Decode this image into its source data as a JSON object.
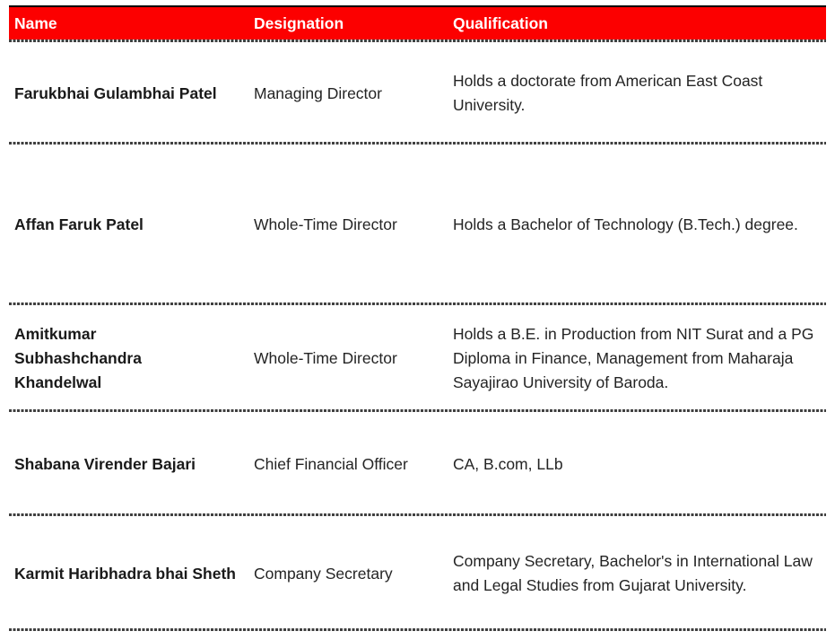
{
  "table": {
    "columns": [
      {
        "label": "Name"
      },
      {
        "label": "Designation"
      },
      {
        "label": "Qualification"
      }
    ],
    "rows": [
      {
        "name": "Farukbhai Gulambhai Patel",
        "designation": "Managing Director",
        "qualification": "Holds a doctorate from American East Coast University."
      },
      {
        "name": "Affan Faruk Patel",
        "designation": "Whole-Time Director",
        "qualification": "Holds a Bachelor of Technology (B.Tech.) degree."
      },
      {
        "name": "Amitkumar\nSubhashchandra\nKhandelwal",
        "designation": "Whole-Time Director",
        "qualification": "Holds a B.E. in Production from NIT Surat and a PG Diploma in Finance, Management from Maharaja Sayajirao University of Baroda."
      },
      {
        "name": "Shabana Virender Bajari",
        "designation": "Chief Financial Officer",
        "qualification": "CA, B.com, LLb"
      },
      {
        "name": "Karmit Haribhadra bhai Sheth",
        "designation": "Company Secretary",
        "qualification": "Company Secretary, Bachelor's in International Law and Legal Studies from Gujarat University."
      }
    ]
  },
  "colors": {
    "header_bg": "#FC0000",
    "header_text": "#FFFFFF",
    "header_top_border": "#000000",
    "separator": "#3F3F3F",
    "name_text": "#1A1A1A",
    "body_text": "#242424"
  }
}
